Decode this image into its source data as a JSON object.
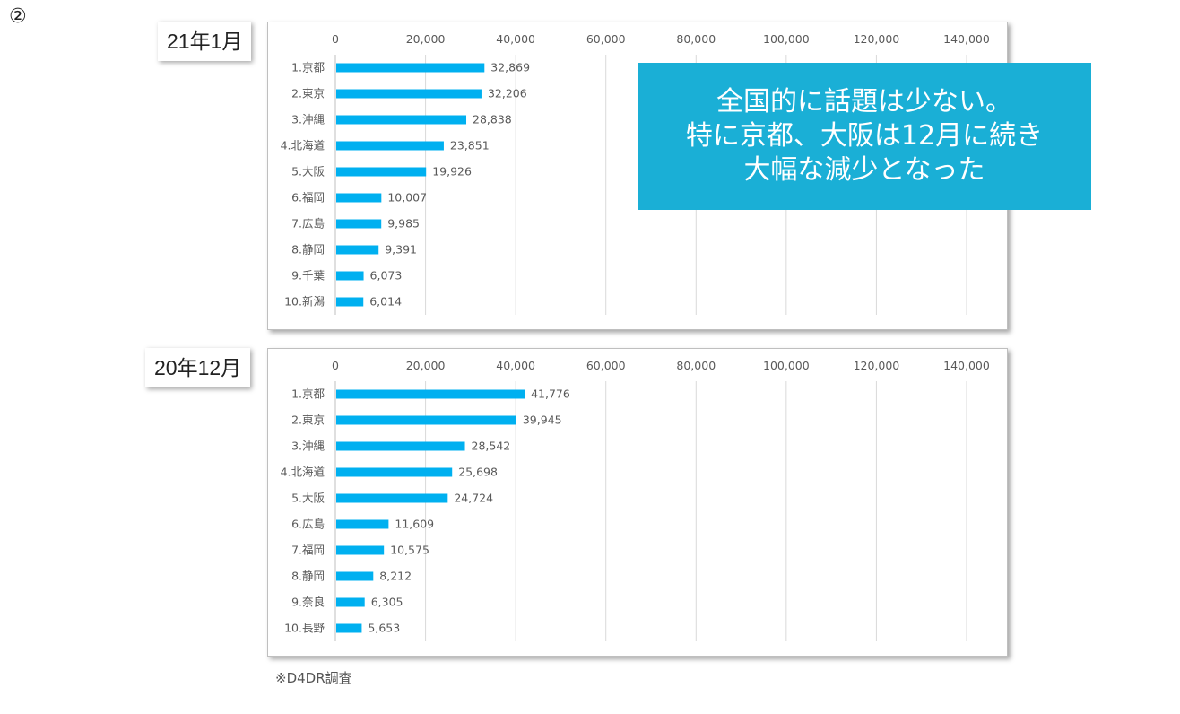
{
  "slide_number": "②",
  "callout": {
    "lines": [
      "全国的に話題は少ない。",
      "特に京都、大阪は12月に続き",
      "大幅な減少となった"
    ]
  },
  "source_note": "※D4DR調査",
  "colors": {
    "bar": "#00b0f0",
    "callout_bg": "#1aafd6",
    "grid": "#d9d9d9"
  },
  "chart_data": [
    {
      "type": "bar",
      "orientation": "horizontal",
      "title": "21年1月",
      "xlim": [
        0,
        140000
      ],
      "xticks": [
        "0",
        "20,000",
        "40,000",
        "60,000",
        "80,000",
        "100,000",
        "120,000",
        "140,000"
      ],
      "categories": [
        "1.京都",
        "2.東京",
        "3.沖縄",
        "4.北海道",
        "5.大阪",
        "6.福岡",
        "7.広島",
        "8.静岡",
        "9.千葉",
        "10.新潟"
      ],
      "values": [
        32869,
        32206,
        28838,
        23851,
        19926,
        10007,
        9985,
        9391,
        6073,
        6014
      ],
      "value_labels": [
        "32,869",
        "32,206",
        "28,838",
        "23,851",
        "19,926",
        "10,007",
        "9,985",
        "9,391",
        "6,073",
        "6,014"
      ],
      "grid": true
    },
    {
      "type": "bar",
      "orientation": "horizontal",
      "title": "20年12月",
      "xlim": [
        0,
        140000
      ],
      "xticks": [
        "0",
        "20,000",
        "40,000",
        "60,000",
        "80,000",
        "100,000",
        "120,000",
        "140,000"
      ],
      "categories": [
        "1.京都",
        "2.東京",
        "3.沖縄",
        "4.北海道",
        "5.大阪",
        "6.広島",
        "7.福岡",
        "8.静岡",
        "9.奈良",
        "10.長野"
      ],
      "values": [
        41776,
        39945,
        28542,
        25698,
        24724,
        11609,
        10575,
        8212,
        6305,
        5653
      ],
      "value_labels": [
        "41,776",
        "39,945",
        "28,542",
        "25,698",
        "24,724",
        "11,609",
        "10,575",
        "8,212",
        "6,305",
        "5,653"
      ],
      "grid": true
    }
  ]
}
